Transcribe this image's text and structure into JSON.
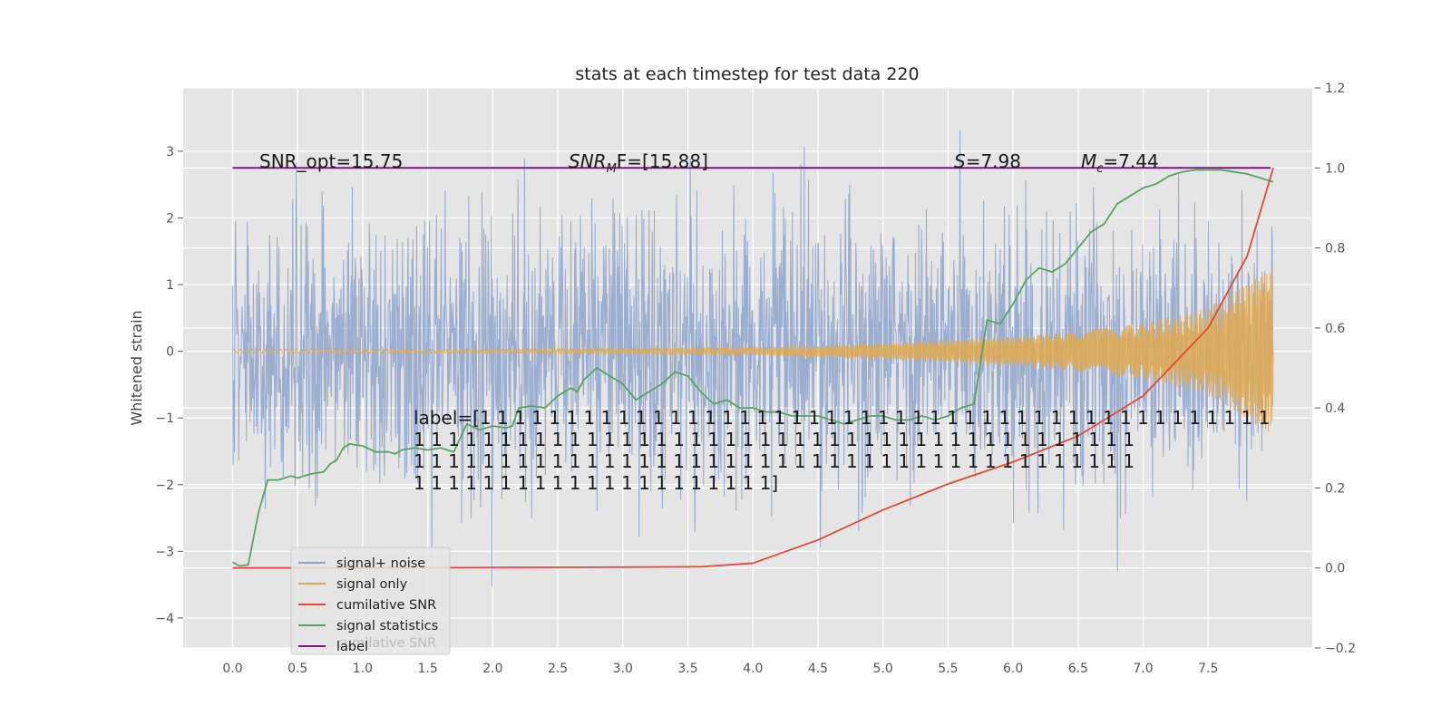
{
  "chart_data": {
    "type": "line",
    "title": "stats at each timestep for test data 220",
    "ylabel": "Whitened strain",
    "xlabel": "",
    "xlim": [
      -0.38,
      8.3
    ],
    "ylim": [
      -4.45,
      3.95
    ],
    "y2lim": [
      -0.2,
      1.2
    ],
    "x_ticks": [
      "0.0",
      "0.5",
      "1.0",
      "1.5",
      "2.0",
      "2.5",
      "3.0",
      "3.5",
      "4.0",
      "4.5",
      "5.0",
      "5.5",
      "6.0",
      "6.5",
      "7.0",
      "7.5"
    ],
    "y_ticks": [
      "3",
      "2",
      "1",
      "0",
      "−1",
      "−2",
      "−3",
      "−4"
    ],
    "y2_ticks": [
      "1.2",
      "1.0",
      "0.8",
      "0.6",
      "0.4",
      "0.2",
      "0.0",
      "−0.2"
    ],
    "grid": true,
    "legend_position": "lower-left",
    "colors": {
      "axes_bg": "#e5e5e5",
      "grid": "#ffffff",
      "noise": "#8fa5cc",
      "signal": "#e0a94f",
      "cumulative_snr": "#e24a33",
      "signal_statistics": "#55a560",
      "label": "#7a1a79"
    },
    "annotations": {
      "snr_opt": "SNR_opt=15.75",
      "snr_mf_main": "SNR",
      "snr_mf_sub": "M",
      "snr_mf_rest": "F=[15.88]",
      "s_sym": "S",
      "s_val": "=7.98",
      "mc_sym": "M",
      "mc_sub": "c",
      "mc_val": "=7.44"
    },
    "label_text": [
      "label=[1 1 1 1 1 1 1 1 1 1 1 1 1 1 1 1 1 1 1 1 1 1 1 1 1 1 1 1 1 1 1 1 1 1 1 1 1 1 1 1 1 1 1 1 1 1",
      " 1 1 1 1 1 1 1 1 1 1 1 1 1 1 1 1 1 1 1 1 1 1 1 1 1 1 1 1 1 1 1 1 1 1 1 1 1 1 1 1 1 1",
      " 1 1 1 1 1 1 1 1 1 1 1 1 1 1 1 1 1 1 1 1 1 1 1 1 1 1 1 1 1 1 1 1 1 1 1 1 1 1 1 1 1 1",
      " 1 1 1 1 1 1 1 1 1 1 1 1 1 1 1 1 1 1 1 1 1]"
    ],
    "legend_ghost": "cumilative SNR",
    "series": [
      {
        "name": "signal+ noise",
        "axis": "left",
        "description": "dense noisy strain, roughly ±2 std with spikes up to 3.6 and down to −4.0",
        "x_range": [
          0,
          8.0
        ],
        "amplitude_std": 1.0
      },
      {
        "name": "signal only",
        "axis": "left",
        "description": "chirp waveform growing in amplitude toward the end",
        "envelope": {
          "x": [
            0,
            2,
            4,
            5,
            6,
            6.5,
            7,
            7.5,
            8.0
          ],
          "y": [
            0.03,
            0.03,
            0.06,
            0.12,
            0.22,
            0.3,
            0.42,
            0.65,
            1.25
          ]
        }
      },
      {
        "name": "cumilative SNR",
        "axis": "right",
        "x": [
          0,
          1,
          2,
          3,
          3.6,
          4.0,
          4.5,
          5.0,
          5.5,
          6.0,
          6.5,
          7.0,
          7.5,
          7.8,
          8.0
        ],
        "y": [
          0.0,
          0.0,
          0.001,
          0.002,
          0.003,
          0.012,
          0.07,
          0.145,
          0.21,
          0.265,
          0.33,
          0.43,
          0.6,
          0.78,
          1.0
        ]
      },
      {
        "name": "signal statistics",
        "axis": "right",
        "x": [
          0,
          0.05,
          0.12,
          0.2,
          0.27,
          0.35,
          0.45,
          0.5,
          0.6,
          0.7,
          0.75,
          0.8,
          0.85,
          0.9,
          1.0,
          1.1,
          1.2,
          1.25,
          1.3,
          1.4,
          1.5,
          1.6,
          1.65,
          1.7,
          1.8,
          1.9,
          2.0,
          2.1,
          2.15,
          2.2,
          2.3,
          2.4,
          2.5,
          2.6,
          2.65,
          2.7,
          2.8,
          2.9,
          3.0,
          3.1,
          3.2,
          3.3,
          3.4,
          3.5,
          3.6,
          3.7,
          3.8,
          3.9,
          4.0,
          4.1,
          4.2,
          4.3,
          4.4,
          4.5,
          4.6,
          4.7,
          4.8,
          4.9,
          5.0,
          5.1,
          5.2,
          5.3,
          5.4,
          5.5,
          5.6,
          5.7,
          5.8,
          5.9,
          6.0,
          6.1,
          6.2,
          6.3,
          6.4,
          6.5,
          6.6,
          6.7,
          6.8,
          6.9,
          7.0,
          7.1,
          7.2,
          7.3,
          7.4,
          7.5,
          7.6,
          7.7,
          7.8,
          7.9,
          8.0
        ],
        "y": [
          0.015,
          0.005,
          0.008,
          0.14,
          0.22,
          0.22,
          0.23,
          0.225,
          0.235,
          0.24,
          0.26,
          0.27,
          0.3,
          0.31,
          0.305,
          0.29,
          0.29,
          0.285,
          0.295,
          0.3,
          0.295,
          0.3,
          0.295,
          0.29,
          0.36,
          0.345,
          0.355,
          0.35,
          0.355,
          0.4,
          0.405,
          0.4,
          0.43,
          0.45,
          0.44,
          0.47,
          0.5,
          0.48,
          0.46,
          0.42,
          0.44,
          0.46,
          0.49,
          0.48,
          0.44,
          0.41,
          0.42,
          0.4,
          0.4,
          0.39,
          0.39,
          0.38,
          0.38,
          0.38,
          0.37,
          0.36,
          0.37,
          0.38,
          0.38,
          0.37,
          0.37,
          0.38,
          0.37,
          0.38,
          0.4,
          0.41,
          0.62,
          0.61,
          0.66,
          0.72,
          0.75,
          0.74,
          0.76,
          0.8,
          0.84,
          0.86,
          0.91,
          0.93,
          0.95,
          0.96,
          0.98,
          0.99,
          0.995,
          0.995,
          0.995,
          0.99,
          0.985,
          0.975,
          0.965
        ]
      },
      {
        "name": "label",
        "axis": "right",
        "x": [
          0,
          7.98
        ],
        "y": [
          1.0,
          1.0
        ]
      }
    ]
  }
}
